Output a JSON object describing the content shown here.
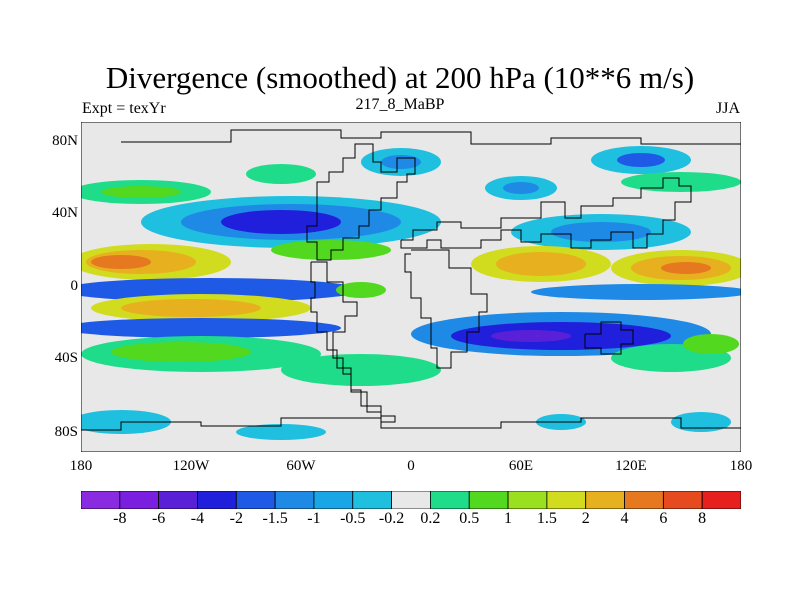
{
  "header": {
    "title": "Divergence (smoothed) at 200 hPa (10**6 m/s)",
    "left_subtitle": "Expt = texYr",
    "center_subtitle": "217_8_MaBP",
    "right_subtitle": "JJA"
  },
  "map": {
    "lat_labels": [
      "80N",
      "40N",
      "0",
      "40S",
      "80S"
    ],
    "lon_labels": [
      "180",
      "120W",
      "60W",
      "0",
      "60E",
      "120E",
      "180"
    ],
    "background_color": "#e8e8e8",
    "coastline_color": "#000000"
  },
  "colorbar": {
    "labels": [
      "-8",
      "-6",
      "-4",
      "-2",
      "-1.5",
      "-1",
      "-0.5",
      "-0.2",
      "0.2",
      "0.5",
      "1",
      "1.5",
      "2",
      "4",
      "6",
      "8"
    ],
    "colors": [
      "#8a2be2",
      "#7a1fe0",
      "#5a20d8",
      "#1f1fdc",
      "#1f5ae6",
      "#1f8ae6",
      "#19a6e6",
      "#1fbfe0",
      "#e8e8e8",
      "#1fdc8a",
      "#52d81f",
      "#9be01f",
      "#d2dc1f",
      "#e6b01f",
      "#e6781f",
      "#e64a1f",
      "#e61f1f"
    ]
  }
}
